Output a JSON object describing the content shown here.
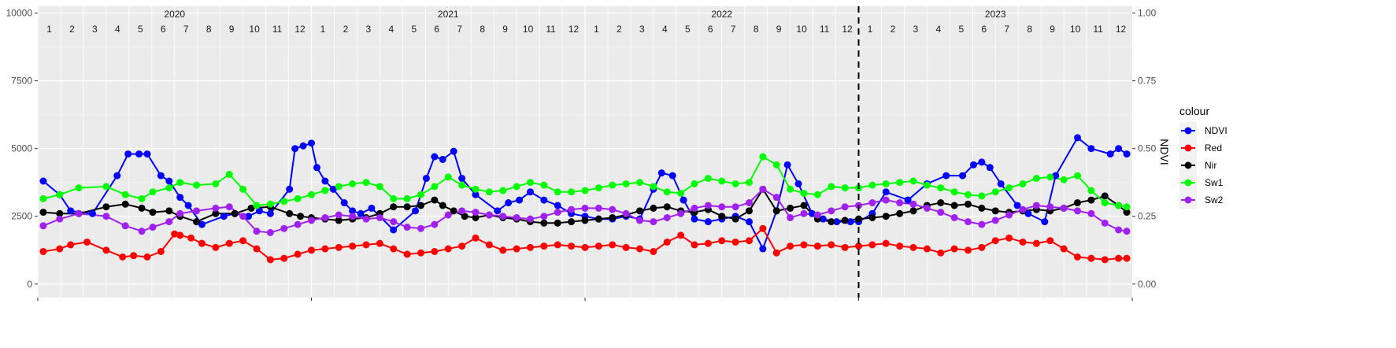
{
  "chart_data": {
    "type": "line",
    "xlabel": "",
    "ylabel_left": "",
    "ylabel_right": "NDVI",
    "ylim_left": [
      -500,
      10250
    ],
    "ylim_right": [
      -0.05,
      1.025
    ],
    "yticks_left": [
      0,
      2500,
      5000,
      7500,
      10000
    ],
    "yticks_left_labels": [
      "0",
      "2500",
      "5000",
      "7500",
      "10000"
    ],
    "yticks_right": [
      0.0,
      0.25,
      0.5,
      0.75,
      1.0
    ],
    "yticks_right_labels": [
      "0.00",
      "0.25",
      "0.50",
      "0.75",
      "1.00"
    ],
    "years": [
      "2020",
      "2021",
      "2022",
      "2023"
    ],
    "month_labels": [
      "1",
      "2",
      "3",
      "4",
      "5",
      "6",
      "7",
      "8",
      "9",
      "10",
      "11",
      "12"
    ],
    "xlim": [
      2020.0,
      2024.0
    ],
    "split_line_x": 2023.0,
    "grid": true,
    "legend": {
      "title": "colour",
      "placement": "right"
    },
    "series": [
      {
        "name": "NDVI",
        "color": "#0000ff",
        "axis": "right",
        "x": [
          2020.02,
          2020.08,
          2020.12,
          2020.2,
          2020.29,
          2020.33,
          2020.37,
          2020.4,
          2020.45,
          2020.48,
          2020.52,
          2020.55,
          2020.6,
          2020.68,
          2020.72,
          2020.77,
          2020.81,
          2020.85,
          2020.92,
          2020.94,
          2020.97,
          2021.0,
          2021.02,
          2021.05,
          2021.08,
          2021.12,
          2021.15,
          2021.18,
          2021.22,
          2021.3,
          2021.38,
          2021.42,
          2021.45,
          2021.48,
          2021.52,
          2021.55,
          2021.6,
          2021.68,
          2021.72,
          2021.76,
          2021.8,
          2021.85,
          2021.9,
          2021.95,
          2022.0,
          2022.05,
          2022.1,
          2022.15,
          2022.2,
          2022.25,
          2022.28,
          2022.32,
          2022.36,
          2022.4,
          2022.45,
          2022.5,
          2022.55,
          2022.6,
          2022.65,
          2022.7,
          2022.74,
          2022.78,
          2022.83,
          2022.87,
          2022.92,
          2022.97,
          2023.0,
          2023.05,
          2023.1,
          2023.18,
          2023.25,
          2023.32,
          2023.38,
          2023.42,
          2023.45,
          2023.48,
          2023.52,
          2023.58,
          2023.62,
          2023.68,
          2023.72,
          2023.8,
          2023.85,
          2023.92,
          2023.95,
          2023.98
        ],
        "y": [
          0.38,
          0.33,
          0.27,
          0.26,
          0.4,
          0.48,
          0.48,
          0.48,
          0.4,
          0.38,
          0.32,
          0.29,
          0.22,
          0.25,
          0.26,
          0.25,
          0.27,
          0.26,
          0.35,
          0.5,
          0.51,
          0.52,
          0.43,
          0.38,
          0.35,
          0.3,
          0.27,
          0.26,
          0.28,
          0.2,
          0.27,
          0.39,
          0.47,
          0.46,
          0.49,
          0.39,
          0.33,
          0.27,
          0.3,
          0.31,
          0.34,
          0.31,
          0.29,
          0.26,
          0.25,
          0.24,
          0.24,
          0.25,
          0.24,
          0.35,
          0.41,
          0.4,
          0.31,
          0.24,
          0.23,
          0.24,
          0.25,
          0.23,
          0.13,
          0.27,
          0.44,
          0.37,
          0.26,
          0.24,
          0.23,
          0.23,
          0.23,
          0.26,
          0.34,
          0.31,
          0.37,
          0.4,
          0.4,
          0.44,
          0.45,
          0.43,
          0.37,
          0.29,
          0.26,
          0.23,
          0.4,
          0.54,
          0.5,
          0.48,
          0.5,
          0.48
        ]
      },
      {
        "name": "Red",
        "color": "#ff0000",
        "axis": "left",
        "x": [
          2020.02,
          2020.08,
          2020.12,
          2020.18,
          2020.25,
          2020.31,
          2020.35,
          2020.4,
          2020.45,
          2020.5,
          2020.52,
          2020.56,
          2020.6,
          2020.65,
          2020.7,
          2020.75,
          2020.8,
          2020.85,
          2020.9,
          2020.95,
          2021.0,
          2021.05,
          2021.1,
          2021.15,
          2021.2,
          2021.25,
          2021.3,
          2021.35,
          2021.4,
          2021.45,
          2021.5,
          2021.55,
          2021.6,
          2021.65,
          2021.7,
          2021.75,
          2021.8,
          2021.85,
          2021.9,
          2021.95,
          2022.0,
          2022.05,
          2022.1,
          2022.15,
          2022.2,
          2022.25,
          2022.3,
          2022.35,
          2022.4,
          2022.45,
          2022.5,
          2022.55,
          2022.6,
          2022.65,
          2022.7,
          2022.75,
          2022.8,
          2022.85,
          2022.9,
          2022.95,
          2023.0,
          2023.05,
          2023.1,
          2023.15,
          2023.2,
          2023.25,
          2023.3,
          2023.35,
          2023.4,
          2023.45,
          2023.5,
          2023.55,
          2023.6,
          2023.65,
          2023.7,
          2023.75,
          2023.8,
          2023.85,
          2023.9,
          2023.95,
          2023.98
        ],
        "y": [
          1200,
          1300,
          1450,
          1550,
          1250,
          1000,
          1050,
          1000,
          1200,
          1850,
          1800,
          1700,
          1500,
          1350,
          1500,
          1600,
          1300,
          900,
          950,
          1100,
          1250,
          1300,
          1350,
          1400,
          1450,
          1500,
          1300,
          1100,
          1150,
          1200,
          1300,
          1400,
          1700,
          1450,
          1250,
          1300,
          1350,
          1400,
          1450,
          1400,
          1350,
          1400,
          1450,
          1350,
          1300,
          1200,
          1550,
          1800,
          1450,
          1500,
          1600,
          1550,
          1600,
          2050,
          1150,
          1400,
          1450,
          1400,
          1450,
          1350,
          1400,
          1450,
          1500,
          1400,
          1350,
          1300,
          1150,
          1300,
          1250,
          1350,
          1600,
          1700,
          1550,
          1500,
          1600,
          1300,
          1000,
          950,
          900,
          950,
          950
        ]
      },
      {
        "name": "Nir",
        "color": "#000000",
        "axis": "left",
        "x": [
          2020.02,
          2020.08,
          2020.15,
          2020.25,
          2020.32,
          2020.38,
          2020.42,
          2020.48,
          2020.52,
          2020.58,
          2020.65,
          2020.72,
          2020.78,
          2020.85,
          2020.92,
          2020.96,
          2021.0,
          2021.05,
          2021.1,
          2021.15,
          2021.2,
          2021.25,
          2021.3,
          2021.35,
          2021.4,
          2021.45,
          2021.48,
          2021.52,
          2021.56,
          2021.6,
          2021.65,
          2021.7,
          2021.75,
          2021.8,
          2021.85,
          2021.9,
          2021.95,
          2022.0,
          2022.05,
          2022.1,
          2022.15,
          2022.2,
          2022.25,
          2022.3,
          2022.35,
          2022.4,
          2022.45,
          2022.5,
          2022.55,
          2022.6,
          2022.65,
          2022.7,
          2022.75,
          2022.8,
          2022.85,
          2022.9,
          2022.95,
          2023.0,
          2023.05,
          2023.1,
          2023.15,
          2023.2,
          2023.25,
          2023.3,
          2023.35,
          2023.4,
          2023.45,
          2023.5,
          2023.55,
          2023.6,
          2023.65,
          2023.7,
          2023.75,
          2023.8,
          2023.85,
          2023.9,
          2023.95,
          2023.98
        ],
        "y": [
          2650,
          2600,
          2600,
          2850,
          2950,
          2800,
          2650,
          2700,
          2500,
          2300,
          2600,
          2600,
          2800,
          2850,
          2600,
          2500,
          2450,
          2400,
          2350,
          2400,
          2450,
          2600,
          2850,
          2850,
          2900,
          3100,
          2900,
          2700,
          2500,
          2450,
          2550,
          2450,
          2400,
          2300,
          2250,
          2250,
          2300,
          2350,
          2400,
          2450,
          2550,
          2700,
          2800,
          2850,
          2700,
          2650,
          2750,
          2500,
          2400,
          2700,
          3500,
          2700,
          2800,
          2900,
          2400,
          2300,
          2350,
          2400,
          2450,
          2500,
          2600,
          2700,
          2900,
          3000,
          2900,
          2950,
          2800,
          2700,
          2650,
          2700,
          2750,
          2700,
          2800,
          3000,
          3100,
          3250,
          2900,
          2650
        ]
      },
      {
        "name": "Sw1",
        "color": "#00ff00",
        "axis": "left",
        "x": [
          2020.02,
          2020.08,
          2020.15,
          2020.25,
          2020.32,
          2020.38,
          2020.42,
          2020.48,
          2020.52,
          2020.58,
          2020.65,
          2020.7,
          2020.75,
          2020.8,
          2020.85,
          2020.9,
          2020.95,
          2021.0,
          2021.05,
          2021.1,
          2021.15,
          2021.2,
          2021.25,
          2021.3,
          2021.35,
          2021.4,
          2021.45,
          2021.5,
          2021.55,
          2021.6,
          2021.65,
          2021.7,
          2021.75,
          2021.8,
          2021.85,
          2021.9,
          2021.95,
          2022.0,
          2022.05,
          2022.1,
          2022.15,
          2022.2,
          2022.25,
          2022.3,
          2022.35,
          2022.4,
          2022.45,
          2022.5,
          2022.55,
          2022.6,
          2022.65,
          2022.7,
          2022.75,
          2022.8,
          2022.85,
          2022.9,
          2022.95,
          2023.0,
          2023.05,
          2023.1,
          2023.15,
          2023.2,
          2023.25,
          2023.3,
          2023.35,
          2023.4,
          2023.45,
          2023.5,
          2023.55,
          2023.6,
          2023.65,
          2023.7,
          2023.75,
          2023.8,
          2023.85,
          2023.9,
          2023.95,
          2023.98
        ],
        "y": [
          3150,
          3300,
          3550,
          3600,
          3300,
          3150,
          3400,
          3550,
          3750,
          3650,
          3700,
          4050,
          3500,
          2900,
          2950,
          3050,
          3150,
          3300,
          3450,
          3600,
          3700,
          3750,
          3600,
          3150,
          3150,
          3300,
          3600,
          3950,
          3650,
          3500,
          3400,
          3450,
          3600,
          3750,
          3650,
          3400,
          3400,
          3450,
          3550,
          3650,
          3700,
          3750,
          3600,
          3400,
          3350,
          3700,
          3900,
          3800,
          3700,
          3750,
          4700,
          4400,
          3500,
          3350,
          3300,
          3600,
          3550,
          3550,
          3650,
          3700,
          3750,
          3800,
          3650,
          3550,
          3400,
          3300,
          3250,
          3400,
          3550,
          3700,
          3900,
          3950,
          3850,
          4000,
          3450,
          3000,
          2900,
          2850
        ]
      },
      {
        "name": "Sw2",
        "color": "#a020f0",
        "axis": "left",
        "x": [
          2020.02,
          2020.08,
          2020.15,
          2020.25,
          2020.32,
          2020.38,
          2020.42,
          2020.48,
          2020.52,
          2020.58,
          2020.65,
          2020.7,
          2020.75,
          2020.8,
          2020.85,
          2020.9,
          2020.95,
          2021.0,
          2021.05,
          2021.1,
          2021.15,
          2021.2,
          2021.25,
          2021.3,
          2021.35,
          2021.4,
          2021.45,
          2021.5,
          2021.55,
          2021.6,
          2021.65,
          2021.7,
          2021.75,
          2021.8,
          2021.85,
          2021.9,
          2021.95,
          2022.0,
          2022.05,
          2022.1,
          2022.15,
          2022.2,
          2022.25,
          2022.3,
          2022.35,
          2022.4,
          2022.45,
          2022.5,
          2022.55,
          2022.6,
          2022.65,
          2022.7,
          2022.75,
          2022.8,
          2022.85,
          2022.9,
          2022.95,
          2023.0,
          2023.05,
          2023.1,
          2023.15,
          2023.2,
          2023.25,
          2023.3,
          2023.35,
          2023.4,
          2023.45,
          2023.5,
          2023.55,
          2023.6,
          2023.65,
          2023.7,
          2023.75,
          2023.8,
          2023.85,
          2023.9,
          2023.95,
          2023.98
        ],
        "y": [
          2150,
          2400,
          2600,
          2500,
          2150,
          1950,
          2100,
          2300,
          2600,
          2700,
          2800,
          2850,
          2500,
          1950,
          1900,
          2050,
          2200,
          2350,
          2450,
          2550,
          2500,
          2400,
          2450,
          2300,
          2100,
          2050,
          2200,
          2550,
          2700,
          2650,
          2550,
          2500,
          2450,
          2400,
          2500,
          2650,
          2750,
          2800,
          2800,
          2750,
          2600,
          2350,
          2300,
          2450,
          2600,
          2800,
          2900,
          2850,
          2850,
          3000,
          3500,
          3200,
          2450,
          2600,
          2550,
          2700,
          2850,
          2900,
          3000,
          3100,
          3000,
          2950,
          2800,
          2650,
          2450,
          2300,
          2200,
          2350,
          2550,
          2750,
          2900,
          2850,
          2800,
          2700,
          2600,
          2250,
          2000,
          1950
        ]
      }
    ]
  }
}
